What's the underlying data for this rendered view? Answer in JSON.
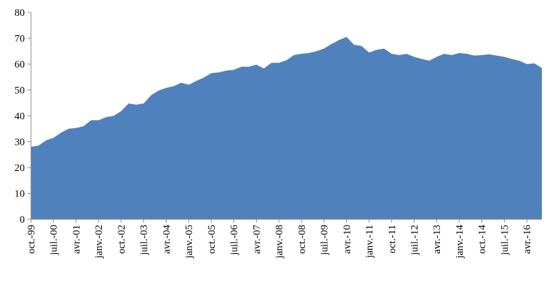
{
  "chart_data": {
    "type": "area",
    "color": "#4f81bd",
    "categories": [
      "oct.-99",
      null,
      null,
      "juil.-00",
      null,
      null,
      "avr.-01",
      null,
      null,
      "janv.-02",
      null,
      null,
      "oct.-02",
      null,
      null,
      "juil.-03",
      null,
      null,
      "avr.-04",
      null,
      null,
      "janv.-05",
      null,
      null,
      "oct.-05",
      null,
      null,
      "juil.-06",
      null,
      null,
      "avr.-07",
      null,
      null,
      "janv.-08",
      null,
      null,
      "oct.-08",
      null,
      null,
      "juil.-09",
      null,
      null,
      "avr.-10",
      null,
      null,
      "janv.-11",
      null,
      null,
      "oct.-11",
      null,
      null,
      "juil.-12",
      null,
      null,
      "avr.-13",
      null,
      null,
      "janv.-14",
      null,
      null,
      "oct.-14",
      null,
      null,
      "juil.-15",
      null,
      null,
      "avr.-16",
      null,
      null
    ],
    "values": [
      28,
      28.5,
      30.5,
      31.5,
      33.5,
      35,
      35.3,
      36,
      38.3,
      38.3,
      39.5,
      40,
      41.8,
      44.8,
      44.3,
      44.8,
      48,
      49.8,
      50.8,
      51.5,
      52.8,
      52,
      53.5,
      54.8,
      56.5,
      56.8,
      57.5,
      57.8,
      59,
      59,
      59.8,
      58.3,
      60.5,
      60.5,
      61.5,
      63.5,
      64,
      64.3,
      65,
      66,
      67.8,
      69.3,
      70.5,
      67.5,
      67,
      64.5,
      65.5,
      66,
      64,
      63.5,
      64,
      62.8,
      62,
      61.3,
      62.8,
      64,
      63.5,
      64.3,
      64,
      63.3,
      63.5,
      63.8,
      63.3,
      62.8,
      62,
      61.3,
      60,
      60.3,
      58.5
    ],
    "ylim": [
      0,
      80
    ],
    "yticks": [
      0,
      10,
      20,
      30,
      40,
      50,
      60,
      70,
      80
    ]
  }
}
